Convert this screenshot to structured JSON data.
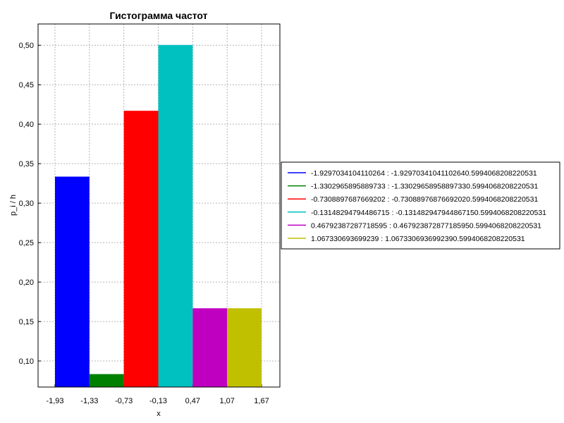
{
  "chart_data": {
    "type": "bar",
    "title": "Гистограмма частот",
    "xlabel": "x",
    "ylabel": "p_i / h",
    "x_edges": [
      -1.93,
      -1.33,
      -0.73,
      -0.13,
      0.47,
      1.07,
      1.67
    ],
    "x_tick_labels": [
      "-1,93",
      "-1,33",
      "-0,73",
      "-0,13",
      "0,47",
      "1,07",
      "1,67"
    ],
    "y_ticks": [
      0.1,
      0.15,
      0.2,
      0.25,
      0.3,
      0.35,
      0.4,
      0.45,
      0.5
    ],
    "y_tick_labels": [
      "0,10",
      "0,15",
      "0,20",
      "0,25",
      "0,30",
      "0,35",
      "0,40",
      "0,45",
      "0,50"
    ],
    "ylim": [
      0.067,
      0.527
    ],
    "grid": true,
    "legend_position": "right",
    "series": [
      {
        "name": "-1.9297034104110264 : -1.92970341041102640.5994068208220531",
        "value": 0.3336,
        "color": "#0000ff"
      },
      {
        "name": "-1.3302965895889733 : -1.33029658958897330.5994068208220531",
        "value": 0.0834,
        "color": "#008000"
      },
      {
        "name": "-0.7308897687669202 : -0.73088976876692020.5994068208220531",
        "value": 0.417,
        "color": "#ff0000"
      },
      {
        "name": "-0.13148294794486715 : -0.131482947944867150.5994068208220531",
        "value": 0.5004,
        "color": "#00c0c0"
      },
      {
        "name": "0.46792387287718595 : 0.467923872877185950.5994068208220531",
        "value": 0.1668,
        "color": "#c000c0"
      },
      {
        "name": "1.067330693699239 : 1.0673306936992390.5994068208220531",
        "value": 0.1668,
        "color": "#c0c000"
      }
    ]
  }
}
